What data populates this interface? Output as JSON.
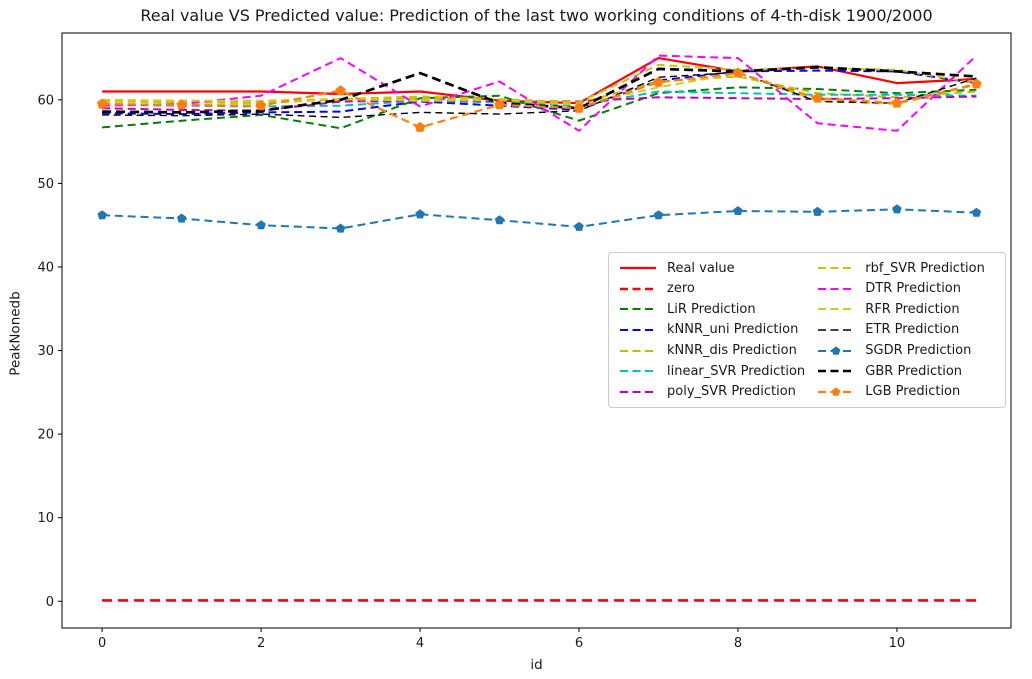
{
  "window": {
    "background": "#ffffff"
  },
  "chart_data": {
    "type": "line",
    "title": "Real value VS Predicted value: Prediction of the last two working conditions of 4-th-disk 1900/2000",
    "xlabel": "id",
    "ylabel": "PeakNonedb",
    "xlim": [
      -0.505,
      11.435
    ],
    "ylim": [
      -3.2,
      68.0
    ],
    "xticks": [
      0,
      2,
      4,
      6,
      8,
      10
    ],
    "yticks": [
      0,
      10,
      20,
      30,
      40,
      50,
      60
    ],
    "grid": false,
    "legend_columns": 2,
    "legend_position": "center-right",
    "x": [
      0,
      1,
      2,
      3,
      4,
      5,
      6,
      7,
      8,
      9,
      10,
      11
    ],
    "series": [
      {
        "name": "Real value",
        "color": "#ff0000",
        "linestyle": "solid",
        "linewidth": 2.2,
        "dash": "",
        "marker": "none",
        "marker_size": 0,
        "values": [
          61.0,
          61.0,
          61.0,
          60.7,
          61.0,
          59.9,
          59.6,
          65.0,
          63.4,
          64.0,
          62.0,
          62.5
        ]
      },
      {
        "name": "zero",
        "color": "#ff0000",
        "linestyle": "dashed",
        "linewidth": 2.6,
        "dash": "10 6",
        "marker": "none",
        "marker_size": 0,
        "values": [
          0.1,
          0.1,
          0.1,
          0.1,
          0.1,
          0.1,
          0.1,
          0.1,
          0.1,
          0.1,
          0.1,
          0.1
        ]
      },
      {
        "name": "LiR Prediction",
        "color": "#008000",
        "linestyle": "dashed",
        "linewidth": 2.0,
        "dash": "8 4.8",
        "marker": "none",
        "marker_size": 0,
        "values": [
          56.7,
          57.5,
          58.2,
          56.6,
          60.2,
          60.5,
          57.5,
          60.8,
          61.5,
          61.3,
          60.8,
          61.2
        ]
      },
      {
        "name": "kNNR_uni Prediction",
        "color": "#0000ff",
        "linestyle": "dashed",
        "linewidth": 2.0,
        "dash": "8 4.8",
        "marker": "none",
        "marker_size": 0,
        "values": [
          58.4,
          58.3,
          58.5,
          58.6,
          59.8,
          59.3,
          58.8,
          62.3,
          63.4,
          63.5,
          63.4,
          62.0
        ]
      },
      {
        "name": "kNNR_dis Prediction",
        "color": "#bfbf00",
        "linestyle": "dashed",
        "linewidth": 2.0,
        "dash": "8 4.8",
        "marker": "none",
        "marker_size": 0,
        "values": [
          59.9,
          59.9,
          59.8,
          60.0,
          60.2,
          60.0,
          59.6,
          62.2,
          62.8,
          60.8,
          60.3,
          61.0
        ]
      },
      {
        "name": "linear_SVR Prediction",
        "color": "#00bfbf",
        "linestyle": "dashed",
        "linewidth": 2.0,
        "dash": "8 4.8",
        "marker": "none",
        "marker_size": 0,
        "values": [
          59.4,
          59.3,
          59.2,
          59.3,
          59.9,
          59.7,
          59.3,
          61.0,
          60.8,
          60.6,
          60.6,
          60.5
        ]
      },
      {
        "name": "poly_SVR Prediction",
        "color": "#bf00bf",
        "linestyle": "dashed",
        "linewidth": 2.0,
        "dash": "8 4.8",
        "marker": "none",
        "marker_size": 0,
        "values": [
          59.0,
          58.8,
          58.7,
          59.8,
          59.9,
          59.9,
          59.8,
          60.3,
          60.2,
          60.1,
          60.2,
          60.4
        ]
      },
      {
        "name": "rbf_SVR Prediction",
        "color": "#c6c600",
        "linestyle": "dashed",
        "linewidth": 2.0,
        "dash": "8 4.8",
        "marker": "none",
        "marker_size": 0,
        "values": [
          59.8,
          59.7,
          59.6,
          60.1,
          60.4,
          60.1,
          59.7,
          64.2,
          63.6,
          63.8,
          63.6,
          62.0
        ]
      },
      {
        "name": "DTR Prediction",
        "color": "#ff00ff",
        "linestyle": "dashed",
        "linewidth": 2.0,
        "dash": "8 4.8",
        "marker": "none",
        "marker_size": 0,
        "values": [
          59.3,
          59.5,
          60.5,
          65.0,
          59.2,
          62.2,
          56.3,
          65.3,
          65.0,
          57.2,
          56.3,
          65.3
        ]
      },
      {
        "name": "RFR Prediction",
        "color": "#cdcd1a",
        "linestyle": "dashed",
        "linewidth": 2.0,
        "dash": "8 4.8",
        "marker": "none",
        "marker_size": 0,
        "values": [
          60.0,
          59.9,
          59.9,
          60.1,
          59.9,
          60.0,
          59.4,
          61.5,
          63.2,
          59.9,
          59.5,
          61.8
        ]
      },
      {
        "name": "ETR Prediction",
        "color": "#000000",
        "linestyle": "dashed",
        "linewidth": 1.4,
        "dash": "7 4.5",
        "marker": "none",
        "marker_size": 0,
        "values": [
          58.2,
          58.1,
          58.3,
          57.9,
          58.5,
          58.3,
          58.7,
          62.7,
          63.3,
          59.8,
          59.6,
          62.6
        ]
      },
      {
        "name": "SGDR Prediction",
        "color": "#1f77b4",
        "linestyle": "dashed",
        "linewidth": 2.0,
        "dash": "8 4.8",
        "marker": "pentagon",
        "marker_size": 5,
        "values": [
          46.2,
          45.8,
          45.0,
          44.6,
          46.3,
          45.6,
          44.8,
          46.2,
          46.7,
          46.6,
          46.9,
          46.5
        ]
      },
      {
        "name": "GBR Prediction",
        "color": "#000000",
        "linestyle": "dashed",
        "linewidth": 2.7,
        "dash": "9 5",
        "marker": "none",
        "marker_size": 0,
        "values": [
          58.6,
          58.5,
          58.7,
          60.0,
          63.2,
          59.6,
          59.0,
          63.7,
          63.4,
          63.9,
          63.4,
          62.8
        ]
      },
      {
        "name": "LGB Prediction",
        "color": "#ff7f0e",
        "linestyle": "dashed",
        "linewidth": 2.2,
        "dash": "8 4.8",
        "marker": "pentagon",
        "marker_size": 5.5,
        "values": [
          59.5,
          59.4,
          59.3,
          61.1,
          56.7,
          59.4,
          59.0,
          62.1,
          63.2,
          60.2,
          59.6,
          61.9
        ]
      }
    ]
  }
}
